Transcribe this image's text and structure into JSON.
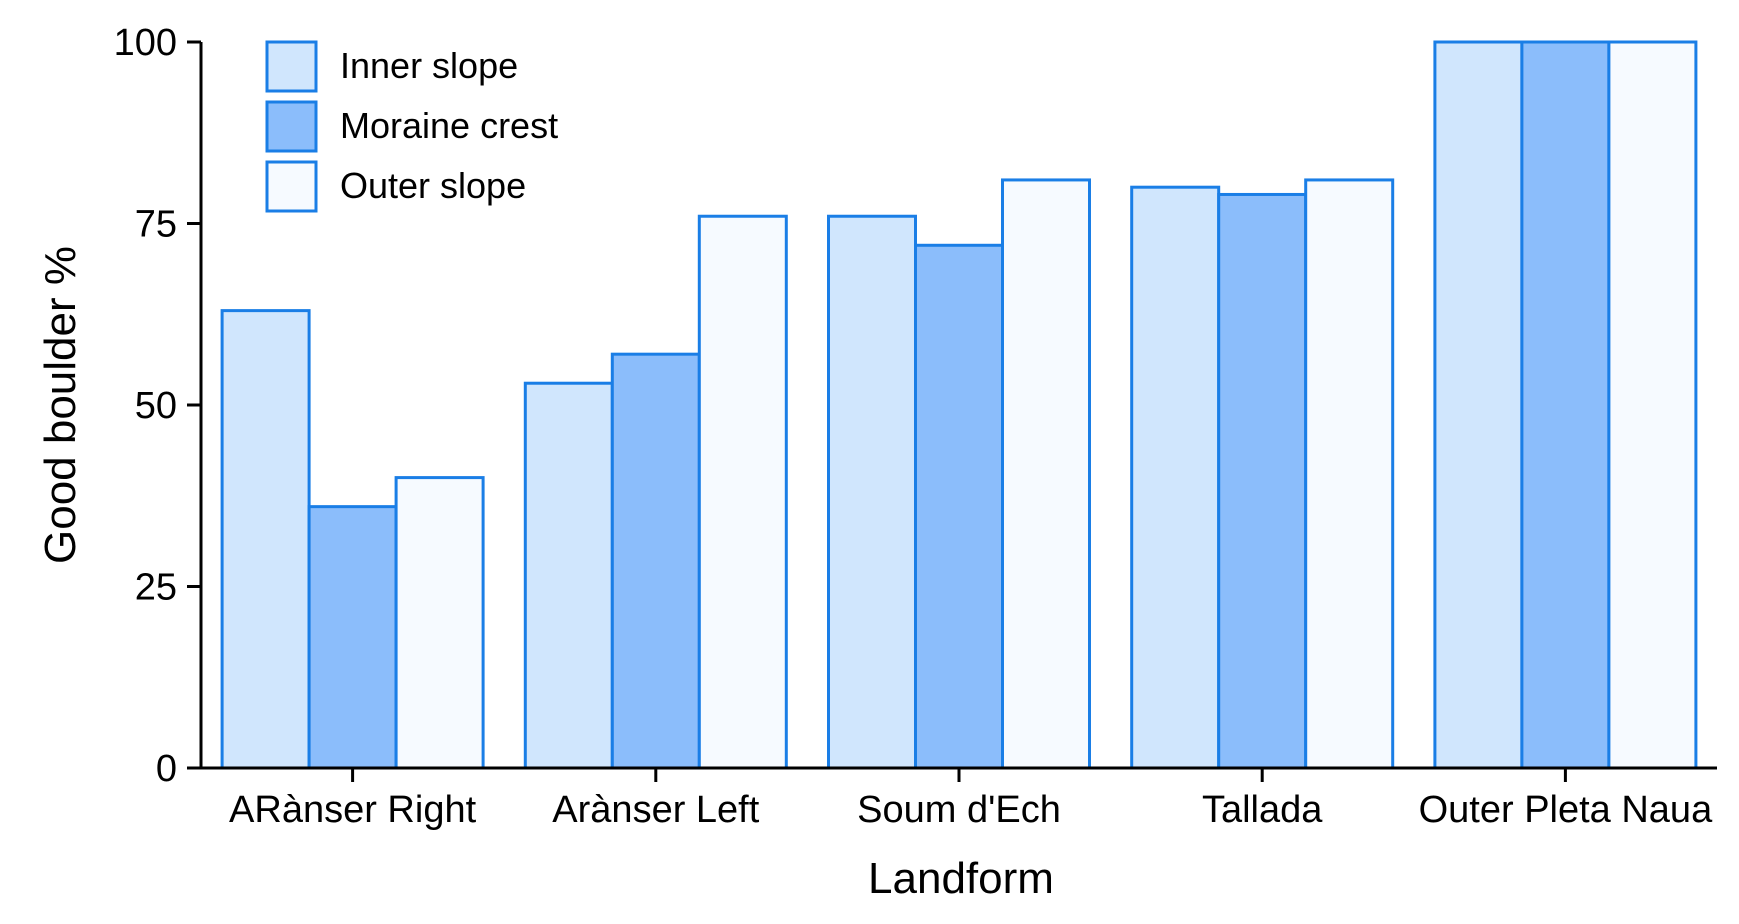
{
  "chart_data": {
    "type": "bar",
    "title": "",
    "xlabel": "Landform",
    "ylabel": "Good boulder %",
    "categories": [
      "ARànser Right",
      "Arànser Left",
      "Soum d'Ech",
      "Tallada",
      "Outer Pleta Naua"
    ],
    "series": [
      {
        "name": "Inner slope",
        "color": "#d0e6fd",
        "values": [
          63,
          53,
          76,
          80,
          100
        ]
      },
      {
        "name": "Moraine crest",
        "color": "#8bbdfb",
        "values": [
          36,
          57,
          72,
          79,
          100
        ]
      },
      {
        "name": "Outer slope",
        "color": "#f6faff",
        "values": [
          40,
          76,
          81,
          81,
          100
        ]
      }
    ],
    "ylim": [
      0,
      100
    ],
    "yticks": [
      0,
      25,
      50,
      75,
      100
    ],
    "edge_color": "#1a7ee6",
    "grid": false,
    "legend_position": "top-left"
  }
}
